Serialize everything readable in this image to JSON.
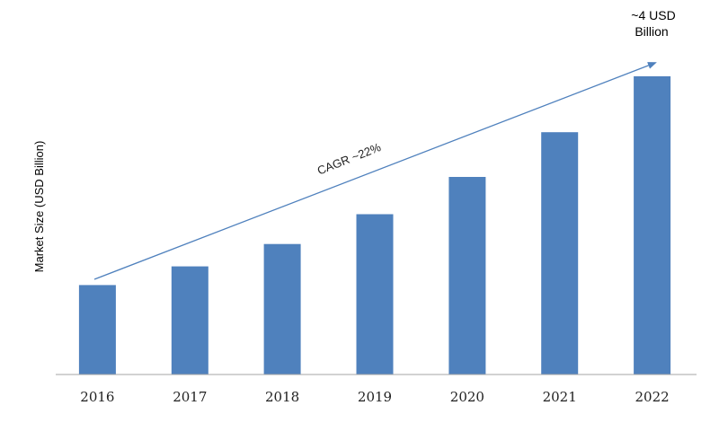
{
  "chart_data": {
    "type": "bar",
    "categories": [
      "2016",
      "2017",
      "2018",
      "2019",
      "2020",
      "2021",
      "2022"
    ],
    "values": [
      1.2,
      1.45,
      1.75,
      2.15,
      2.65,
      3.25,
      4.0
    ],
    "ylabel": "Market Size (USD Billion)",
    "xlabel": "",
    "ylim": [
      0,
      4.3
    ],
    "bar_color": "#4f81bd",
    "arrow_color": "#4f81bd",
    "grid": false,
    "annotations": {
      "trend": "CAGR ~22%",
      "callout_line1": "~4 USD",
      "callout_line2": "Billion"
    }
  }
}
